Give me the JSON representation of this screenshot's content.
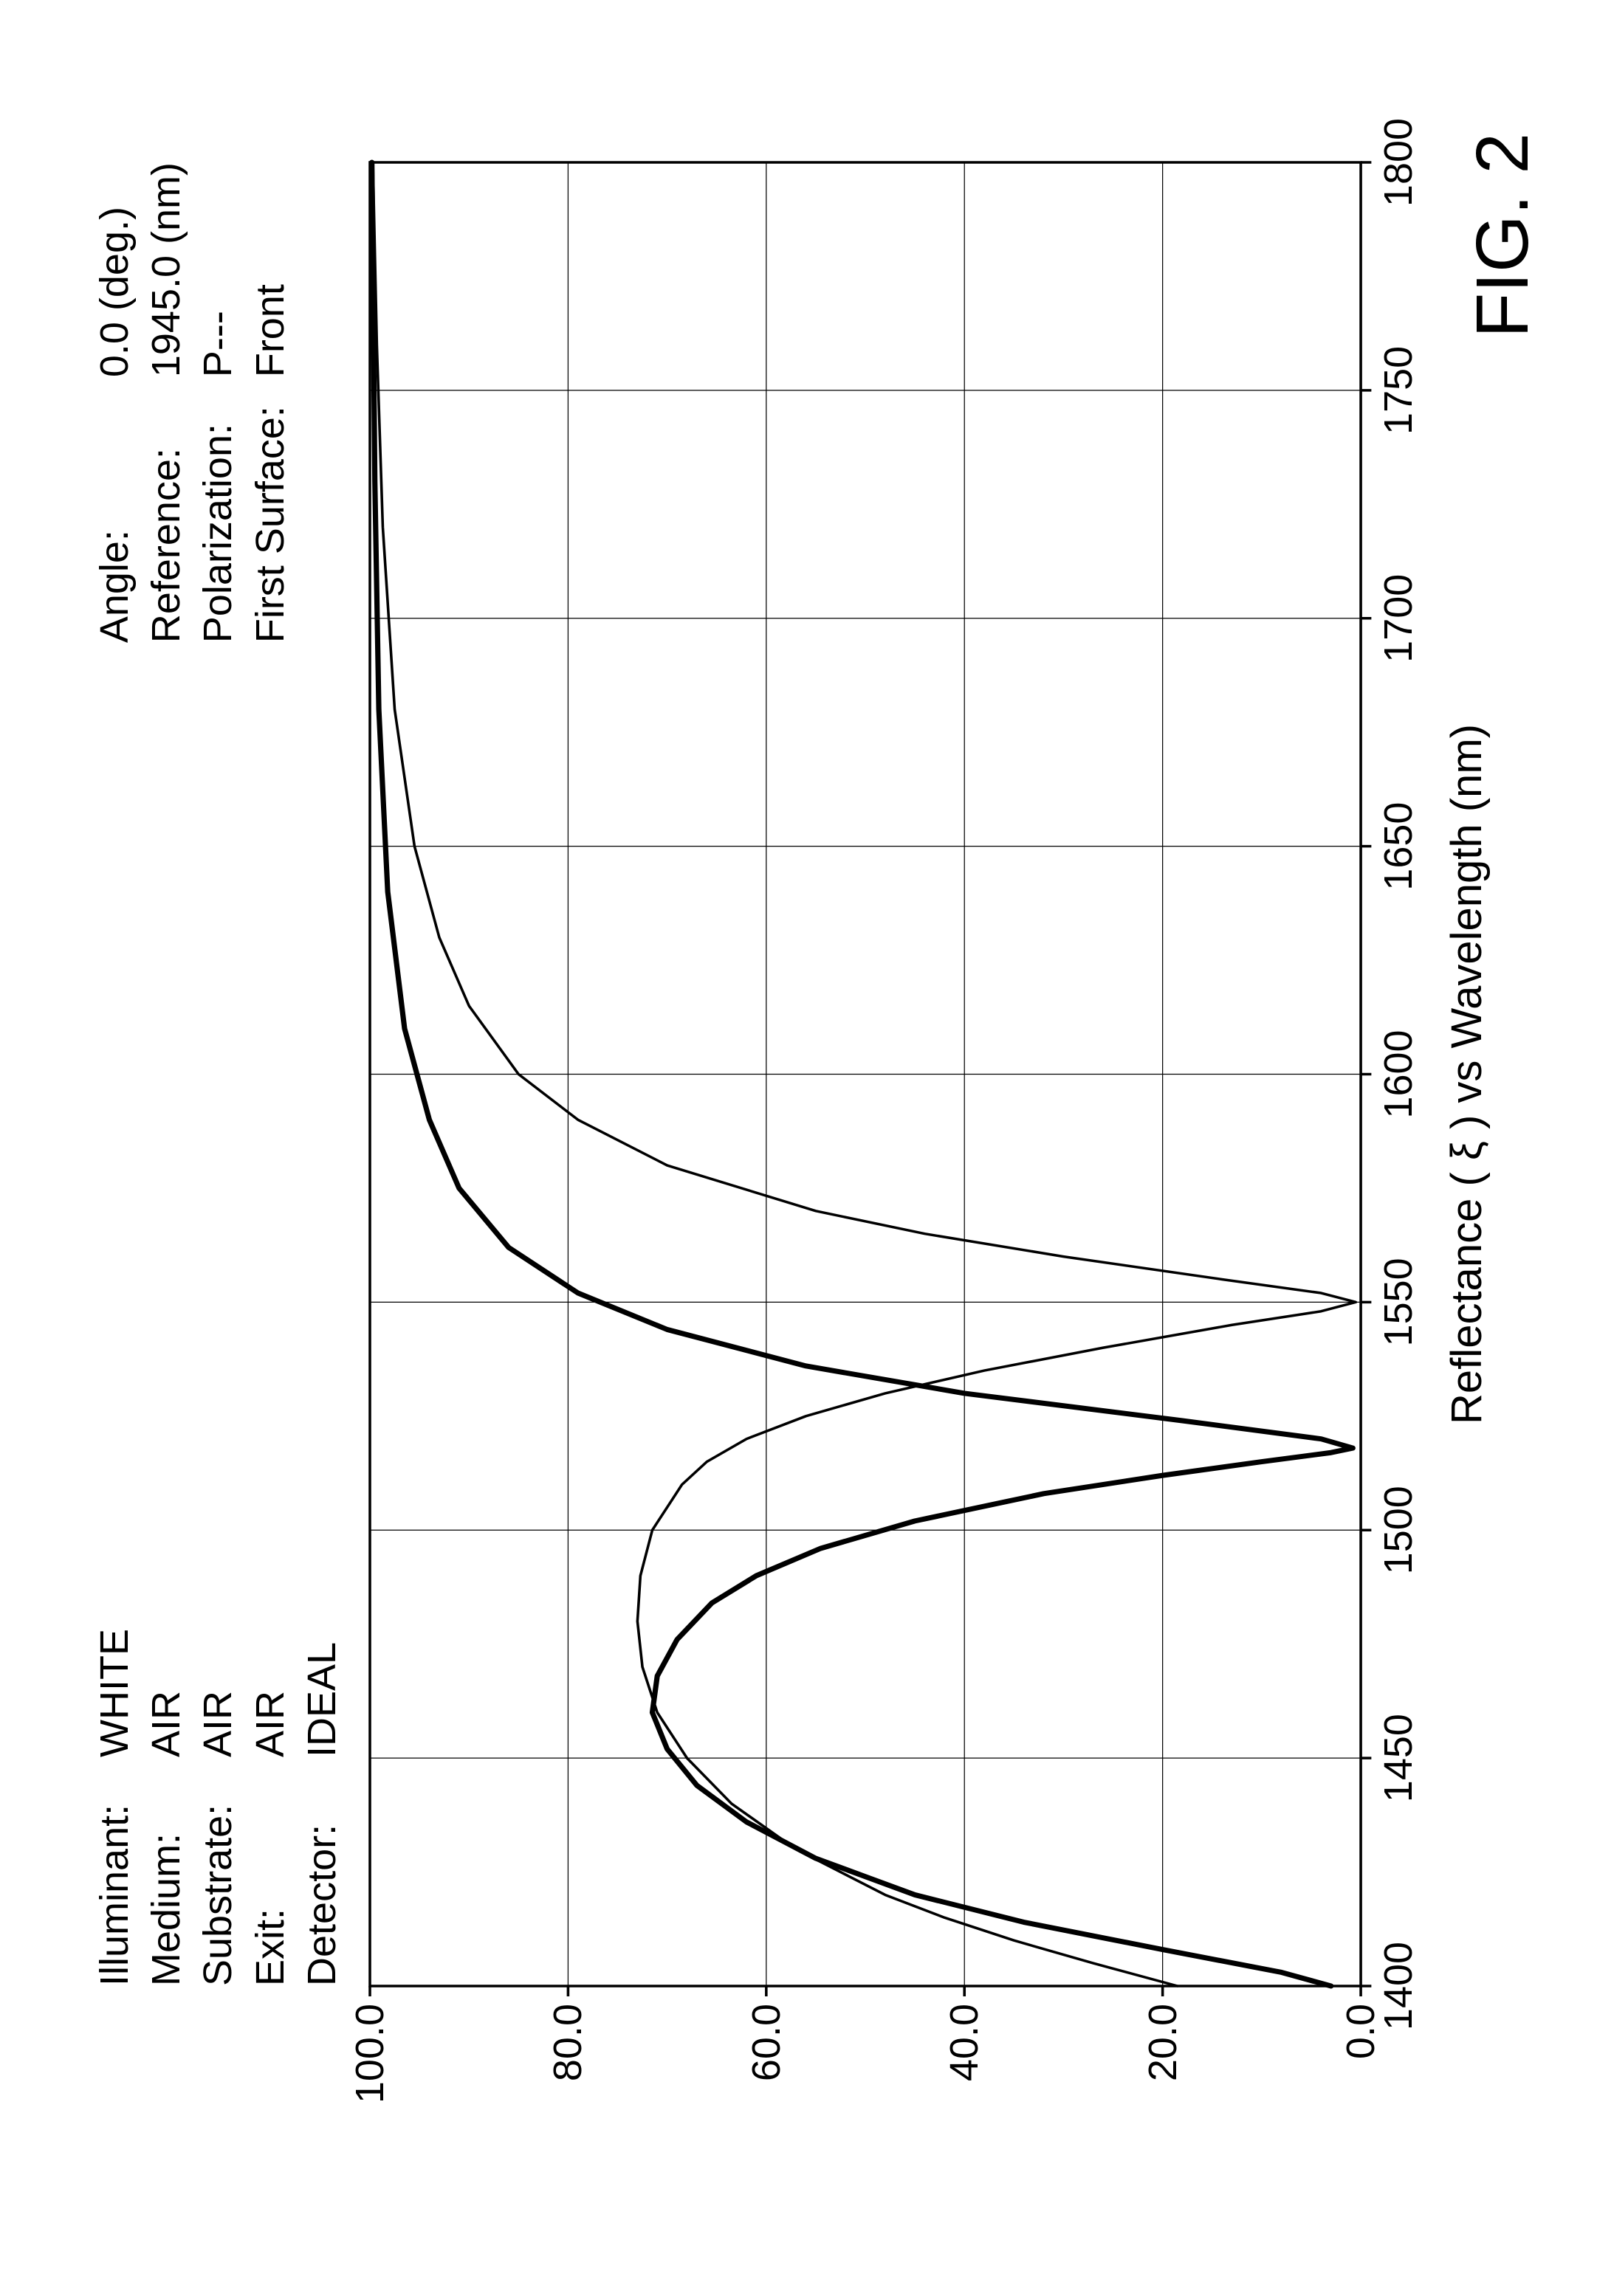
{
  "meta_left": [
    {
      "label": "Illuminant:",
      "value": "WHITE"
    },
    {
      "label": "Medium:",
      "value": "AIR"
    },
    {
      "label": "Substrate:",
      "value": "AIR"
    },
    {
      "label": "Exit:",
      "value": "AIR"
    },
    {
      "label": "Detector:",
      "value": "IDEAL"
    }
  ],
  "meta_right": [
    {
      "label": "Angle:",
      "value": "0.0 (deg.)"
    },
    {
      "label": "Reference:",
      "value": "1945.0 (nm)"
    },
    {
      "label": "Polarization:",
      "value": "P---"
    },
    {
      "label": "First Surface:",
      "value": "Front"
    }
  ],
  "x_axis_title": "Reflectance ( ξ ) vs Wavelength (nm)",
  "figure_label": "FIG. 2",
  "chart": {
    "type": "line",
    "xlim": [
      1400,
      1800
    ],
    "ylim": [
      0,
      100
    ],
    "xticks": [
      1400,
      1450,
      1500,
      1550,
      1600,
      1650,
      1700,
      1750,
      1800
    ],
    "yticks": [
      0,
      20,
      40,
      60,
      80,
      100
    ],
    "ytick_format": "fixed1",
    "background_color": "#ffffff",
    "axis_color": "#000000",
    "grid_color": "#000000",
    "axis_width": 3.5,
    "grid_width": 1.2,
    "tick_len": 14,
    "series": [
      {
        "name": "thin-curve",
        "color": "#000000",
        "width": 3.5,
        "points": [
          [
            1400,
            18.5
          ],
          [
            1405,
            27
          ],
          [
            1410,
            35
          ],
          [
            1415,
            42
          ],
          [
            1420,
            48
          ],
          [
            1430,
            57
          ],
          [
            1440,
            63.5
          ],
          [
            1450,
            68
          ],
          [
            1460,
            71
          ],
          [
            1470,
            72.5
          ],
          [
            1480,
            73
          ],
          [
            1490,
            72.7
          ],
          [
            1500,
            71.5
          ],
          [
            1510,
            68.5
          ],
          [
            1515,
            66
          ],
          [
            1520,
            62
          ],
          [
            1525,
            56
          ],
          [
            1530,
            48
          ],
          [
            1535,
            38
          ],
          [
            1540,
            26
          ],
          [
            1545,
            13
          ],
          [
            1548,
            4
          ],
          [
            1550,
            0.5
          ],
          [
            1552,
            4
          ],
          [
            1555,
            14
          ],
          [
            1560,
            30
          ],
          [
            1565,
            44
          ],
          [
            1570,
            55
          ],
          [
            1580,
            70
          ],
          [
            1590,
            79
          ],
          [
            1600,
            85
          ],
          [
            1615,
            90
          ],
          [
            1630,
            93
          ],
          [
            1650,
            95.5
          ],
          [
            1680,
            97.5
          ],
          [
            1720,
            98.7
          ],
          [
            1760,
            99.3
          ],
          [
            1800,
            99.7
          ]
        ]
      },
      {
        "name": "thick-curve",
        "color": "#000000",
        "width": 7,
        "points": [
          [
            1400,
            3
          ],
          [
            1403,
            8
          ],
          [
            1408,
            20
          ],
          [
            1414,
            34
          ],
          [
            1420,
            45
          ],
          [
            1428,
            55
          ],
          [
            1436,
            62
          ],
          [
            1444,
            67
          ],
          [
            1452,
            70
          ],
          [
            1460,
            71.5
          ],
          [
            1468,
            71
          ],
          [
            1476,
            69
          ],
          [
            1484,
            65.5
          ],
          [
            1490,
            61
          ],
          [
            1496,
            54.5
          ],
          [
            1502,
            45
          ],
          [
            1508,
            32
          ],
          [
            1512,
            20
          ],
          [
            1515,
            10
          ],
          [
            1517,
            3
          ],
          [
            1518,
            0.8
          ],
          [
            1520,
            4
          ],
          [
            1524,
            18
          ],
          [
            1530,
            40
          ],
          [
            1536,
            56
          ],
          [
            1544,
            70
          ],
          [
            1552,
            79
          ],
          [
            1562,
            86
          ],
          [
            1575,
            91
          ],
          [
            1590,
            94
          ],
          [
            1610,
            96.5
          ],
          [
            1640,
            98.2
          ],
          [
            1680,
            99.1
          ],
          [
            1730,
            99.5
          ],
          [
            1800,
            99.8
          ]
        ]
      }
    ]
  }
}
